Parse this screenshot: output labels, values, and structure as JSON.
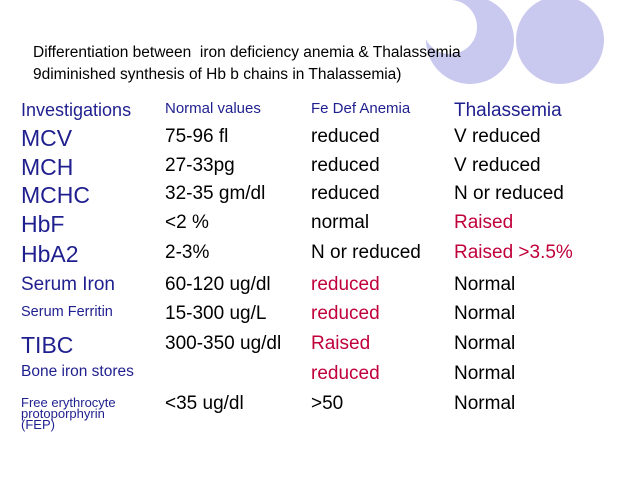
{
  "title": {
    "line1": "Differentiation between  iron deficiency anemia & Thalassemia",
    "line2": "9diminished synthesis of Hb b chains in Thalassemia)"
  },
  "colors": {
    "blue": "#1f1f8f",
    "red": "#c0003a",
    "circle": "#c9c9ef",
    "text": "#000000"
  },
  "headers": {
    "investigations": "Investigations",
    "normal": "Normal values",
    "fe": "Fe Def Anemia",
    "thal": "Thalassemia"
  },
  "rows": [
    {
      "inv": "MCV",
      "normal": "75-96 fl",
      "fe": "reduced",
      "thal": "V reduced"
    },
    {
      "inv": "MCH",
      "normal": "27-33pg",
      "fe": "reduced",
      "thal": "V reduced"
    },
    {
      "inv": "MCHC",
      "normal": "32-35 gm/dl",
      "fe": "reduced",
      "thal": "N or reduced"
    },
    {
      "inv": "HbF",
      "normal": "<2 %",
      "fe": "normal",
      "thal": "Raised"
    },
    {
      "inv": "HbA2",
      "normal": "2-3%",
      "fe": "N or reduced",
      "thal": "Raised >3.5%"
    },
    {
      "inv": "Serum Iron",
      "normal": "60-120 ug/dl",
      "fe": "reduced",
      "thal": "Normal"
    },
    {
      "inv": "Serum Ferritin",
      "normal": "15-300 ug/L",
      "fe": "reduced",
      "thal": "Normal"
    },
    {
      "inv": "TIBC",
      "normal": "300-350 ug/dl",
      "fe": "Raised",
      "thal": "Normal"
    },
    {
      "inv": "Bone iron stores",
      "normal": "",
      "fe": "reduced",
      "thal": "Normal"
    },
    {
      "inv_line1": "Free erythrocyte",
      "inv_line2": "protoporphyrin",
      "inv_line3": "(FEP)",
      "normal": "<35 ug/dl",
      "fe": ">50",
      "thal": "Normal"
    }
  ]
}
